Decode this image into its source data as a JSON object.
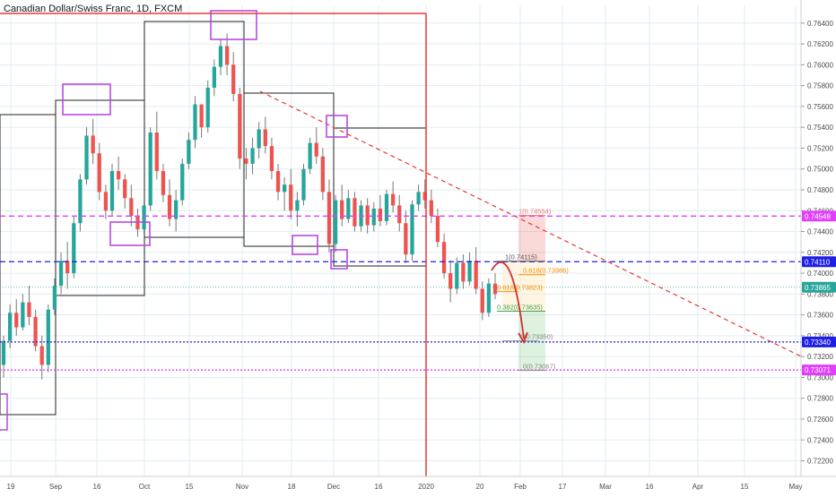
{
  "chart_data": {
    "type": "candlestick",
    "title": "Canadian Dollar/Swiss Franc, 1D, FXCM",
    "symbol": "CADCHF",
    "timeframe": "1D",
    "source": "FXCM",
    "colors": {
      "up": "#26a69a",
      "down": "#ef5350",
      "wick": "#777777",
      "grid": "#e1ecf2",
      "axis_text": "#4a4a4a",
      "red_line": "#e53935",
      "magenta": "#e040fb",
      "blue": "#1e1ee6",
      "purple_box": "#b74ae0",
      "teal": "#4db6ac"
    },
    "ylim": [
      0.7205,
      0.7657
    ],
    "y_ticks": [
      "0.76400",
      "0.76200",
      "0.76000",
      "0.75800",
      "0.75600",
      "0.75400",
      "0.75200",
      "0.75000",
      "0.74800",
      "0.74600",
      "0.74400",
      "0.74200",
      "0.74000",
      "0.73800",
      "0.73600",
      "0.73400",
      "0.73200",
      "0.73000",
      "0.72800",
      "0.72600",
      "0.72400",
      "0.72200"
    ],
    "x_ticks": [
      "19",
      "Sep",
      "16",
      "Oct",
      "15",
      "Nov",
      "18",
      "Dec",
      "16",
      "2020",
      "20",
      "Feb",
      "17",
      "Mar",
      "16",
      "Apr",
      "15",
      "May"
    ],
    "price_labels": [
      {
        "value": 0.74548,
        "text": "0.74548",
        "color": "#e040fb"
      },
      {
        "value": 0.7411,
        "text": "0.74110",
        "color": "#1e1ee6"
      },
      {
        "value": 0.73865,
        "text": "0.73865",
        "color": "#26a69a"
      },
      {
        "value": 0.7334,
        "text": "0.73340",
        "color": "#1e1ee6"
      },
      {
        "value": 0.73071,
        "text": "0.73071",
        "color": "#e040fb"
      }
    ],
    "horizontal_lines": [
      {
        "value": 0.74548,
        "color": "#e040fb",
        "style": "dashed"
      },
      {
        "value": 0.7411,
        "color": "#1e1ee6",
        "style": "dashed"
      },
      {
        "value": 0.7334,
        "color": "#1e1ee6",
        "style": "dotted"
      },
      {
        "value": 0.73071,
        "color": "#e040fb",
        "style": "dotted"
      },
      {
        "value": 0.73865,
        "color": "#26a69a",
        "style": "dotted-thin"
      }
    ],
    "fib_levels": [
      {
        "text": "1(0.74554)",
        "value": 0.74554
      },
      {
        "text": "1(0.74115)",
        "value": 0.74115
      },
      {
        "text": "0.618(0.73986)",
        "value": 0.73986
      },
      {
        "text": "0.618(0.73823)",
        "value": 0.73823
      },
      {
        "text": "0.382(0.73635)",
        "value": 0.73635
      },
      {
        "text": "0(0.73350)",
        "value": 0.7335
      },
      {
        "text": "0(0.73067)",
        "value": 0.73067
      }
    ],
    "candles": [
      [
        0.7312,
        0.734,
        0.73,
        0.7335
      ],
      [
        0.7335,
        0.737,
        0.7328,
        0.7362
      ],
      [
        0.7362,
        0.7375,
        0.734,
        0.7348
      ],
      [
        0.7348,
        0.738,
        0.7345,
        0.7372
      ],
      [
        0.7372,
        0.7388,
        0.735,
        0.7358
      ],
      [
        0.7358,
        0.7365,
        0.7325,
        0.733
      ],
      [
        0.733,
        0.734,
        0.7298,
        0.7312
      ],
      [
        0.7312,
        0.737,
        0.7305,
        0.7365
      ],
      [
        0.7365,
        0.7395,
        0.736,
        0.7388
      ],
      [
        0.7388,
        0.742,
        0.738,
        0.7412
      ],
      [
        0.7412,
        0.743,
        0.7385,
        0.74
      ],
      [
        0.74,
        0.7455,
        0.7395,
        0.7448
      ],
      [
        0.7448,
        0.7495,
        0.744,
        0.749
      ],
      [
        0.749,
        0.754,
        0.7485,
        0.7532
      ],
      [
        0.7532,
        0.7548,
        0.7505,
        0.7515
      ],
      [
        0.7515,
        0.7525,
        0.747,
        0.7478
      ],
      [
        0.7478,
        0.7485,
        0.7452,
        0.746
      ],
      [
        0.746,
        0.7505,
        0.7455,
        0.7498
      ],
      [
        0.7498,
        0.7512,
        0.748,
        0.749
      ],
      [
        0.749,
        0.7495,
        0.7462,
        0.7472
      ],
      [
        0.7472,
        0.7485,
        0.7445,
        0.7455
      ],
      [
        0.7455,
        0.7462,
        0.7435,
        0.7442
      ],
      [
        0.7442,
        0.747,
        0.7438,
        0.7465
      ],
      [
        0.7465,
        0.754,
        0.746,
        0.7535
      ],
      [
        0.7535,
        0.7555,
        0.749,
        0.7498
      ],
      [
        0.7498,
        0.7505,
        0.7468,
        0.7475
      ],
      [
        0.7475,
        0.749,
        0.7445,
        0.7452
      ],
      [
        0.7452,
        0.748,
        0.744,
        0.747
      ],
      [
        0.747,
        0.751,
        0.7465,
        0.7505
      ],
      [
        0.7505,
        0.7535,
        0.75,
        0.7528
      ],
      [
        0.7528,
        0.757,
        0.752,
        0.7562
      ],
      [
        0.7562,
        0.756,
        0.753,
        0.754
      ],
      [
        0.754,
        0.7585,
        0.7535,
        0.7578
      ],
      [
        0.7578,
        0.7605,
        0.757,
        0.7598
      ],
      [
        0.7598,
        0.7625,
        0.759,
        0.7618
      ],
      [
        0.7618,
        0.763,
        0.759,
        0.76
      ],
      [
        0.76,
        0.7612,
        0.7565,
        0.7572
      ],
      [
        0.7572,
        0.7578,
        0.75,
        0.751
      ],
      [
        0.751,
        0.752,
        0.749,
        0.7505
      ],
      [
        0.7505,
        0.753,
        0.7495,
        0.752
      ],
      [
        0.752,
        0.7545,
        0.751,
        0.7538
      ],
      [
        0.7538,
        0.755,
        0.7515,
        0.7522
      ],
      [
        0.7522,
        0.753,
        0.749,
        0.7498
      ],
      [
        0.7498,
        0.7505,
        0.747,
        0.7478
      ],
      [
        0.7478,
        0.7492,
        0.746,
        0.7485
      ],
      [
        0.7485,
        0.75,
        0.7452,
        0.746
      ],
      [
        0.746,
        0.7478,
        0.7445,
        0.747
      ],
      [
        0.747,
        0.7505,
        0.7465,
        0.75
      ],
      [
        0.75,
        0.753,
        0.7495,
        0.7525
      ],
      [
        0.7525,
        0.754,
        0.7505,
        0.7512
      ],
      [
        0.7512,
        0.752,
        0.747,
        0.7478
      ],
      [
        0.7478,
        0.749,
        0.742,
        0.7428
      ],
      [
        0.7428,
        0.7475,
        0.742,
        0.747
      ],
      [
        0.747,
        0.7485,
        0.7445,
        0.7452
      ],
      [
        0.7452,
        0.748,
        0.7448,
        0.7472
      ],
      [
        0.7472,
        0.7478,
        0.744,
        0.7445
      ],
      [
        0.7445,
        0.747,
        0.744,
        0.7465
      ],
      [
        0.7465,
        0.7472,
        0.7438,
        0.7446
      ],
      [
        0.7446,
        0.7468,
        0.744,
        0.7462
      ],
      [
        0.7462,
        0.7475,
        0.7445,
        0.745
      ],
      [
        0.745,
        0.748,
        0.7446,
        0.7476
      ],
      [
        0.7476,
        0.7488,
        0.7458,
        0.7465
      ],
      [
        0.7465,
        0.7475,
        0.744,
        0.7448
      ],
      [
        0.7448,
        0.746,
        0.741,
        0.7418
      ],
      [
        0.7418,
        0.747,
        0.7412,
        0.7466
      ],
      [
        0.7466,
        0.7485,
        0.746,
        0.7478
      ],
      [
        0.7478,
        0.749,
        0.7462,
        0.747
      ],
      [
        0.747,
        0.748,
        0.7448,
        0.7455
      ],
      [
        0.7455,
        0.7462,
        0.7425,
        0.743
      ],
      [
        0.743,
        0.7438,
        0.7395,
        0.74
      ],
      [
        0.74,
        0.7412,
        0.7372,
        0.7385
      ],
      [
        0.7385,
        0.7415,
        0.738,
        0.741
      ],
      [
        0.741,
        0.7418,
        0.7385,
        0.7392
      ],
      [
        0.7392,
        0.742,
        0.7388,
        0.7412
      ],
      [
        0.7412,
        0.7425,
        0.738,
        0.7385
      ],
      [
        0.7385,
        0.7392,
        0.7355,
        0.7362
      ],
      [
        0.7362,
        0.7395,
        0.7358,
        0.739
      ],
      [
        0.739,
        0.74,
        0.7375,
        0.738
      ]
    ]
  }
}
